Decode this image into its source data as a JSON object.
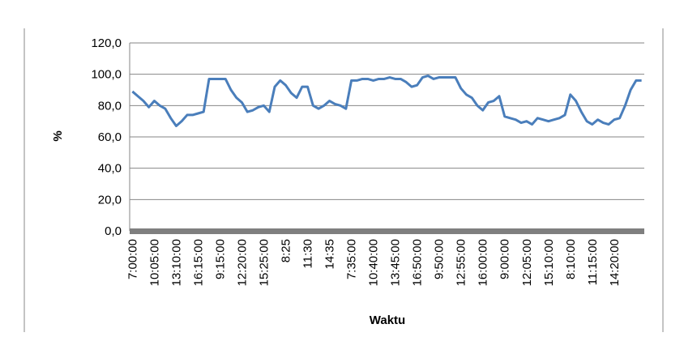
{
  "chart_data": {
    "type": "line",
    "y_label": "%",
    "x_label": "Waktu",
    "categories": [
      "7:00:00",
      null,
      null,
      null,
      "10:05:00",
      null,
      null,
      null,
      "13:10:00",
      null,
      null,
      null,
      "16:15:00",
      null,
      null,
      null,
      "9:15:00",
      null,
      null,
      null,
      "12:20:00",
      null,
      null,
      null,
      "15:25:00",
      null,
      null,
      null,
      "8:25",
      null,
      null,
      null,
      "11:30",
      null,
      null,
      null,
      "14:35",
      null,
      null,
      null,
      "7:35:00",
      null,
      null,
      null,
      "10:40:00",
      null,
      null,
      null,
      "13:45:00",
      null,
      null,
      null,
      "16:50:00",
      null,
      null,
      null,
      "9:50:00",
      null,
      null,
      null,
      "12:55:00",
      null,
      null,
      null,
      "16:00:00",
      null,
      null,
      null,
      "9:00:00",
      null,
      null,
      null,
      "12:05:00",
      null,
      null,
      null,
      "15:10:00",
      null,
      null,
      null,
      "8:10:00",
      null,
      null,
      null,
      "11:15:00",
      null,
      null,
      null,
      "14:20:00",
      null,
      null,
      null,
      null,
      null
    ],
    "series": [
      {
        "color": "#4a7ebb",
        "values": [
          89,
          86,
          83,
          79,
          83,
          80,
          78,
          72,
          67,
          70,
          74,
          74,
          75,
          76,
          97,
          97,
          97,
          97,
          90,
          85,
          82,
          76,
          77,
          79,
          80,
          76,
          92,
          96,
          93,
          88,
          85,
          92,
          92,
          80,
          78,
          80,
          83,
          81,
          80,
          78,
          96,
          96,
          97,
          97,
          96,
          97,
          97,
          98,
          97,
          97,
          95,
          92,
          93,
          98,
          99,
          97,
          98,
          98,
          98,
          98,
          91,
          87,
          85,
          80,
          77,
          82,
          83,
          86,
          73,
          72,
          71,
          69,
          70,
          68,
          72,
          71,
          70,
          71,
          72,
          74,
          87,
          83,
          76,
          70,
          68,
          71,
          69,
          68,
          71,
          72,
          80,
          90,
          96,
          96
        ]
      }
    ],
    "ylim": [
      0,
      120
    ],
    "yticks": [
      {
        "value": 0,
        "label": "0,0"
      },
      {
        "value": 20,
        "label": "20,0"
      },
      {
        "value": 40,
        "label": "40,0"
      },
      {
        "value": 60,
        "label": "60,0"
      },
      {
        "value": 80,
        "label": "80,0"
      },
      {
        "value": 100,
        "label": "100,0"
      },
      {
        "value": 120,
        "label": "120,0"
      }
    ],
    "grid": true
  }
}
